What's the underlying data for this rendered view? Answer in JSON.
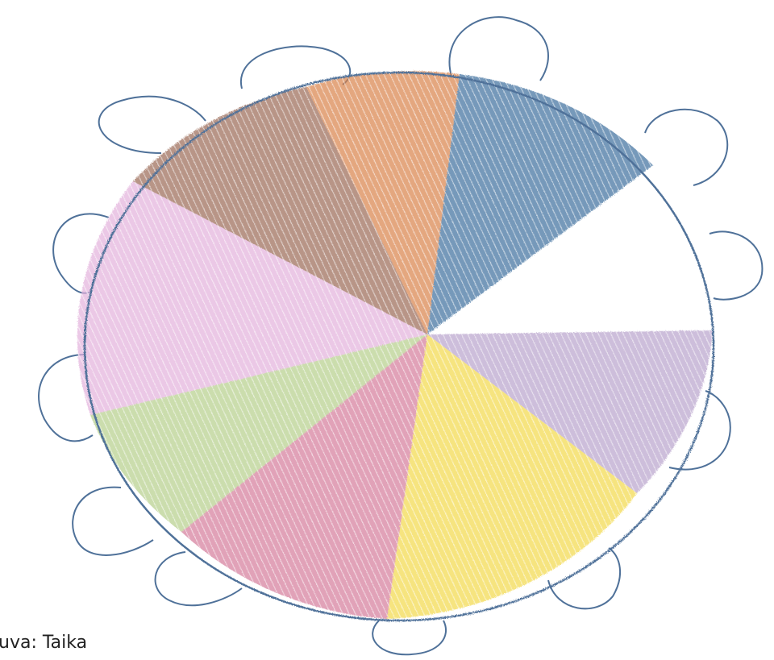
{
  "caption": "uva: Taika"
}
